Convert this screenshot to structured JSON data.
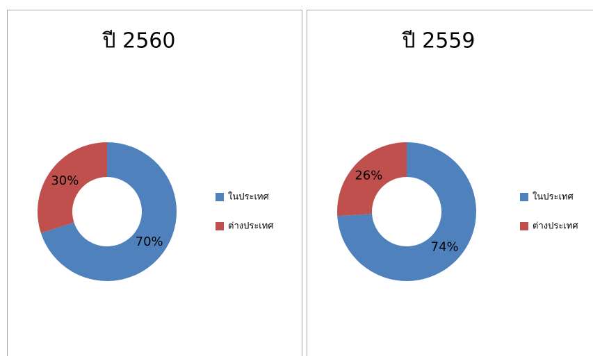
{
  "chart_data": [
    {
      "type": "doughnut",
      "title": "ปี 2560",
      "categories": [
        "ในประเทศ",
        "ต่างประเทศ"
      ],
      "values": [
        70,
        30
      ],
      "value_labels": [
        "70%",
        "30%"
      ],
      "colors": [
        "#4f81bd",
        "#c0504d"
      ],
      "legend": "right"
    },
    {
      "type": "doughnut",
      "title": "ปี 2559",
      "categories": [
        "ในประเทศ",
        "ต่างประเทศ"
      ],
      "values": [
        74,
        26
      ],
      "value_labels": [
        "74%",
        "26%"
      ],
      "colors": [
        "#4f81bd",
        "#c0504d"
      ],
      "legend": "right"
    }
  ]
}
